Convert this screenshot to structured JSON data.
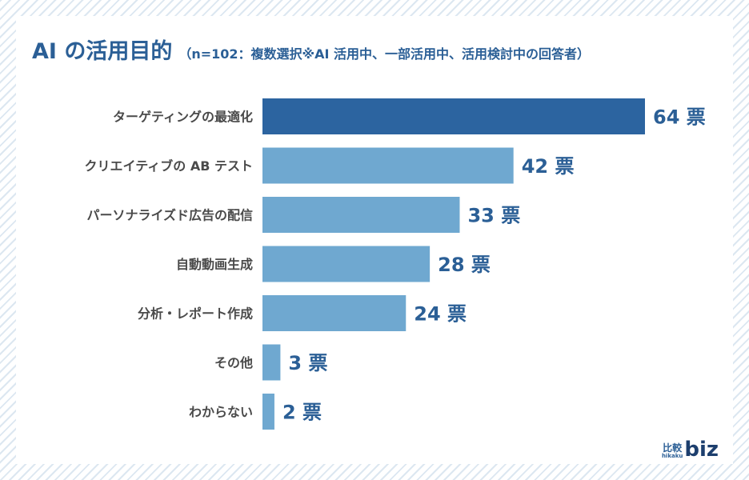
{
  "header": {
    "title": "AI の活用目的",
    "subtitle": "（n=102：複数選択※AI 活用中、一部活用中、活用検討中の回答者）"
  },
  "chart_data": {
    "type": "bar",
    "orientation": "horizontal",
    "categories": [
      "ターゲティングの最適化",
      "クリエイティブの AB テスト",
      "パーソナライズド広告の配信",
      "自動動画生成",
      "分析・レポート作成",
      "その他",
      "わからない"
    ],
    "values": [
      64,
      42,
      33,
      28,
      24,
      3,
      2
    ],
    "value_labels": [
      "64 票",
      "42 票",
      "33 票",
      "28 票",
      "24 票",
      "3 票",
      "2 票"
    ],
    "unit": "票",
    "xlim": [
      0,
      64
    ],
    "highlight_index": 0,
    "colors": {
      "highlight": "#2c64a0",
      "default": "#6fa8d0"
    }
  },
  "logo": {
    "kanji": "比較",
    "roman": "hikaku",
    "word": "biz"
  }
}
